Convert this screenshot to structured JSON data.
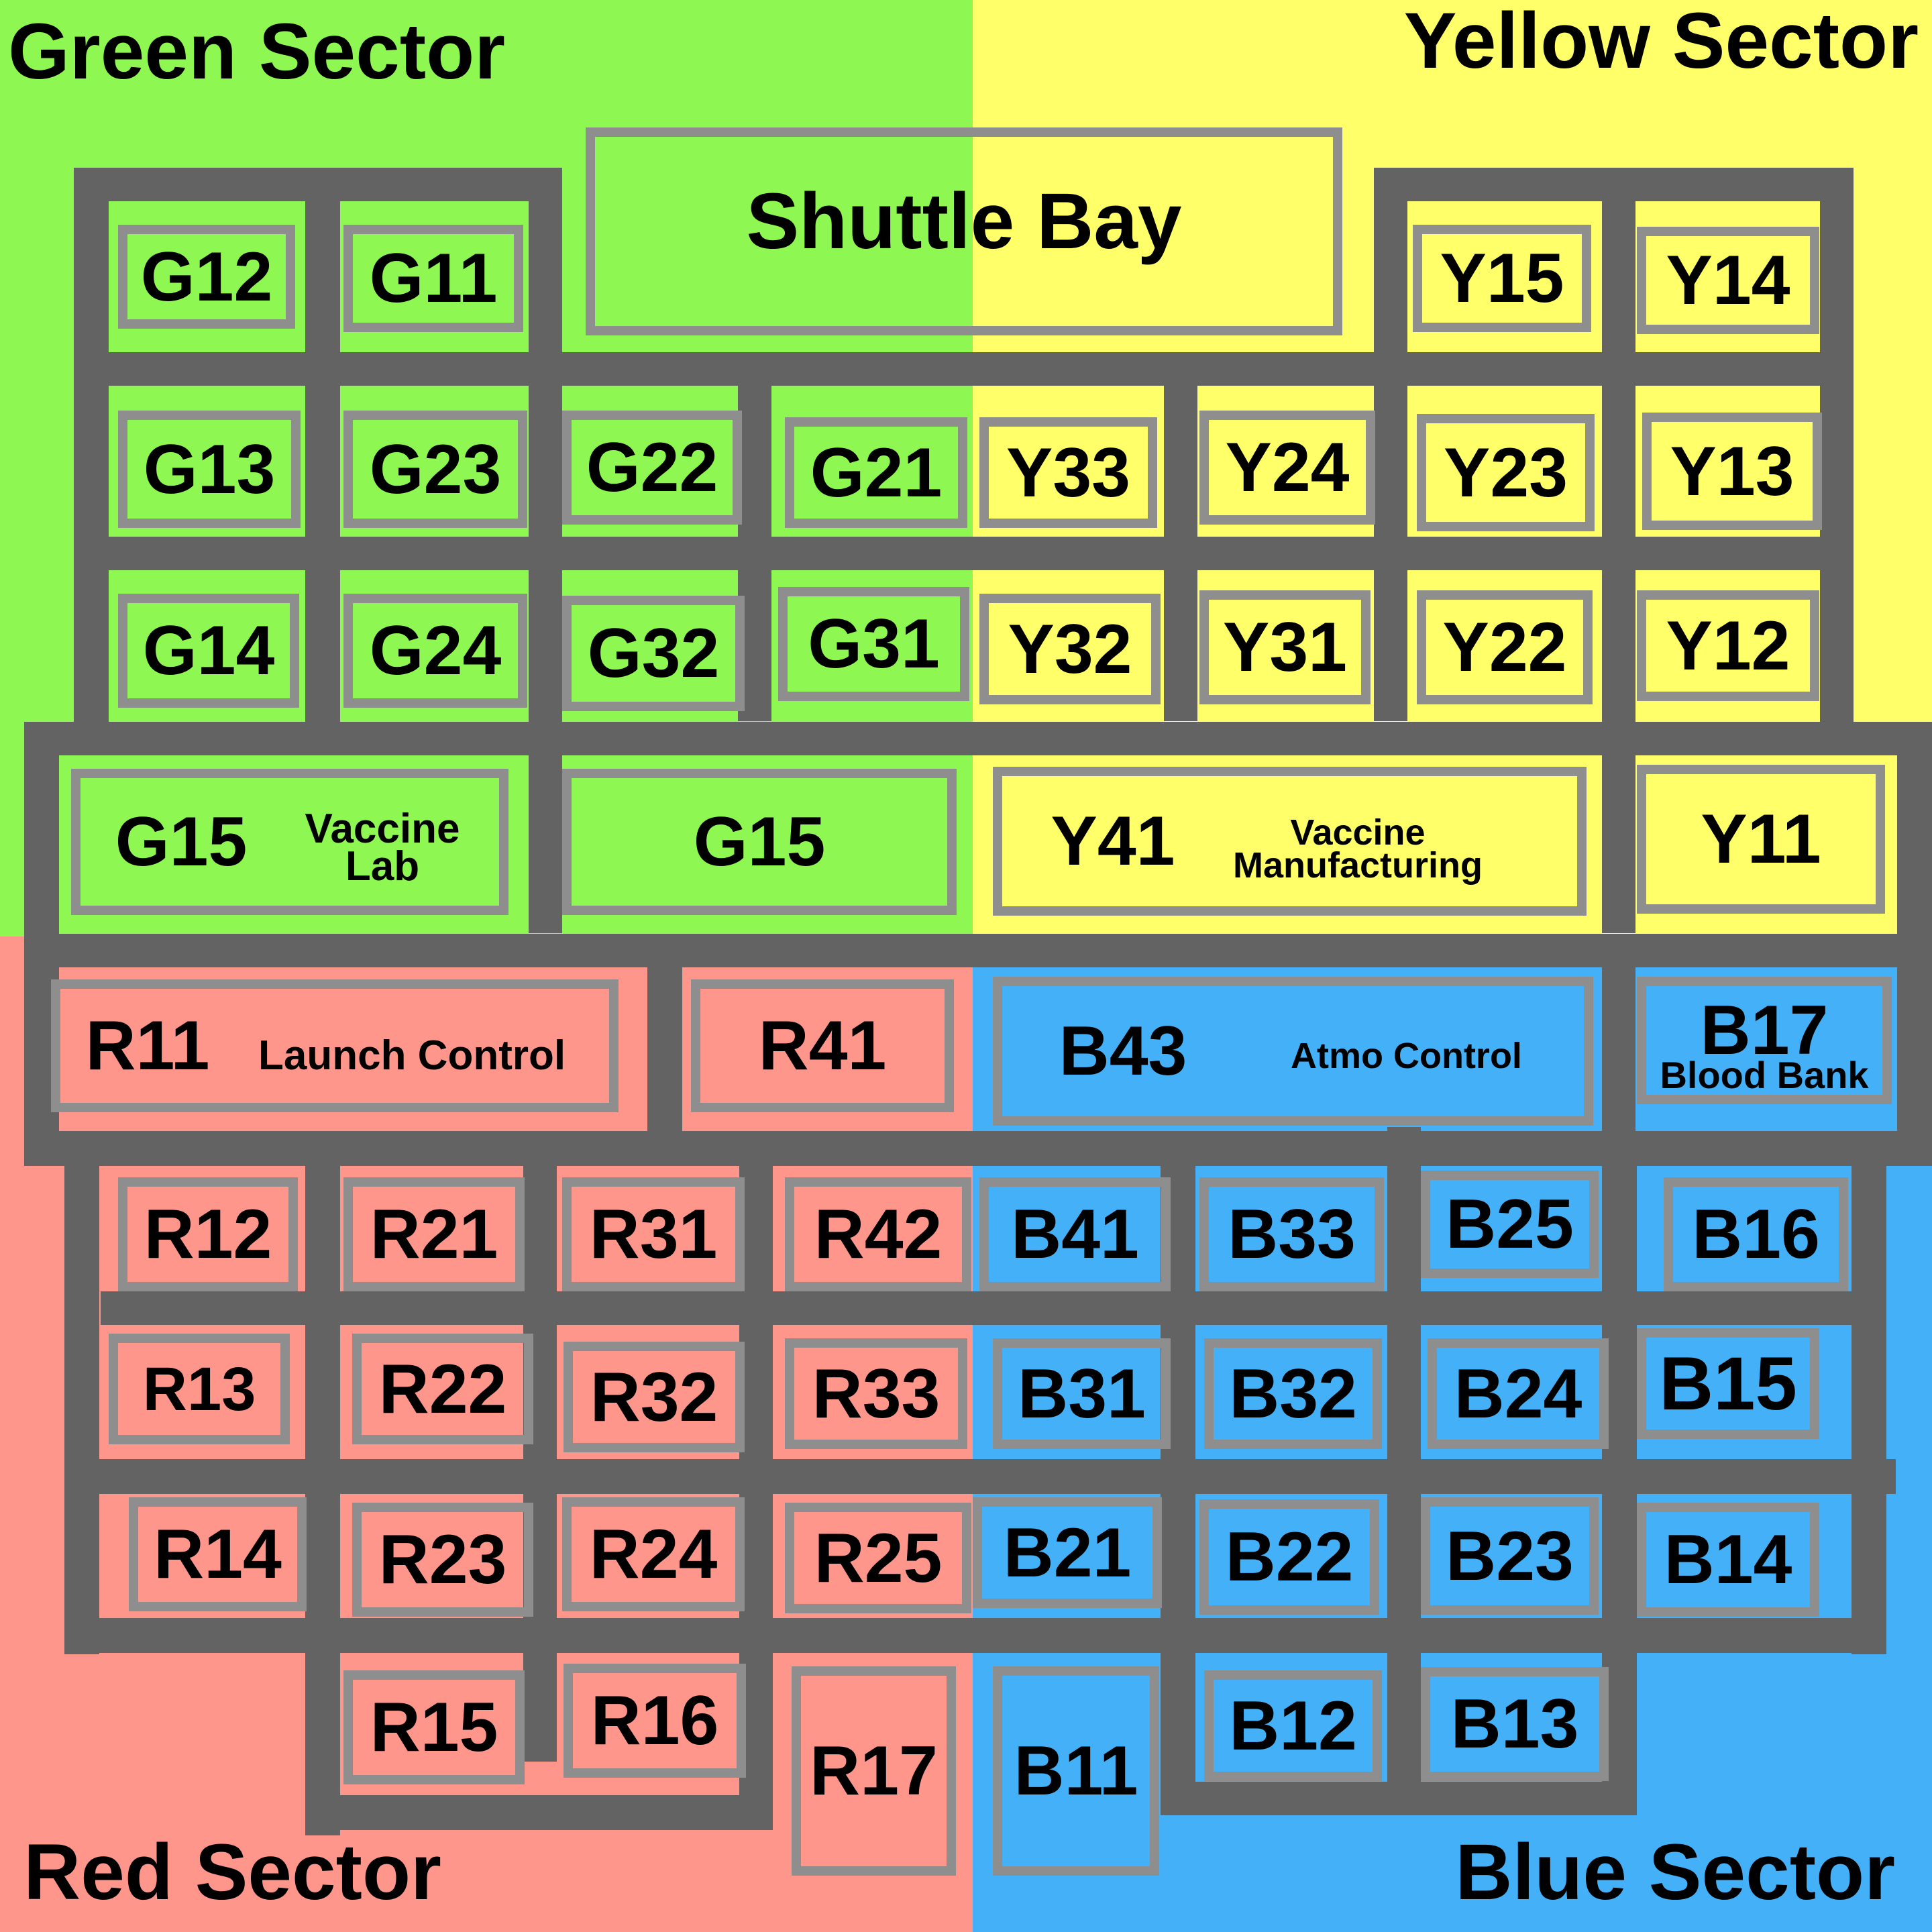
{
  "colors": {
    "green": "#8ff752",
    "yellow": "#ffff6a",
    "red": "#ff968b",
    "blue": "#44b0f8",
    "wall": "#636363",
    "room_border": "#8e8e8e"
  },
  "sectors": {
    "green": "Green Sector",
    "yellow": "Yellow Sector",
    "red": "Red Sector",
    "blue": "Blue Sector"
  },
  "rooms": {
    "shuttle_bay": "Shuttle Bay",
    "g12": "G12",
    "g11": "G11",
    "y15": "Y15",
    "y14": "Y14",
    "g13": "G13",
    "g23": "G23",
    "g22": "G22",
    "g21": "G21",
    "y33": "Y33",
    "y24": "Y24",
    "y23": "Y23",
    "y13": "Y13",
    "g14": "G14",
    "g24": "G24",
    "g32": "G32",
    "g31": "G31",
    "y32": "Y32",
    "y31": "Y31",
    "y22": "Y22",
    "y12": "Y12",
    "g15_lab": "G15",
    "g15_lab_name_1": "Vaccine",
    "g15_lab_name_2": "Lab",
    "g15": "G15",
    "y41": "Y41",
    "y41_name_1": "Vaccine",
    "y41_name_2": "Manufacturing",
    "y11": "Y11",
    "r11": "R11",
    "r11_name": "Launch Control",
    "r41": "R41",
    "b43": "B43",
    "b43_name": "Atmo Control",
    "b17": "B17",
    "b17_name": "Blood Bank",
    "r12": "R12",
    "r21": "R21",
    "r31": "R31",
    "r42": "R42",
    "b41": "B41",
    "b33": "B33",
    "b25": "B25",
    "b16": "B16",
    "r13": "R13",
    "r22": "R22",
    "r32": "R32",
    "r33": "R33",
    "b31": "B31",
    "b32": "B32",
    "b24": "B24",
    "b15": "B15",
    "r14": "R14",
    "r23": "R23",
    "r24": "R24",
    "r25": "R25",
    "b21": "B21",
    "b22": "B22",
    "b23": "B23",
    "b14": "B14",
    "r15": "R15",
    "r16": "R16",
    "r17": "R17",
    "b11": "B11",
    "b12": "B12",
    "b13": "B13"
  }
}
